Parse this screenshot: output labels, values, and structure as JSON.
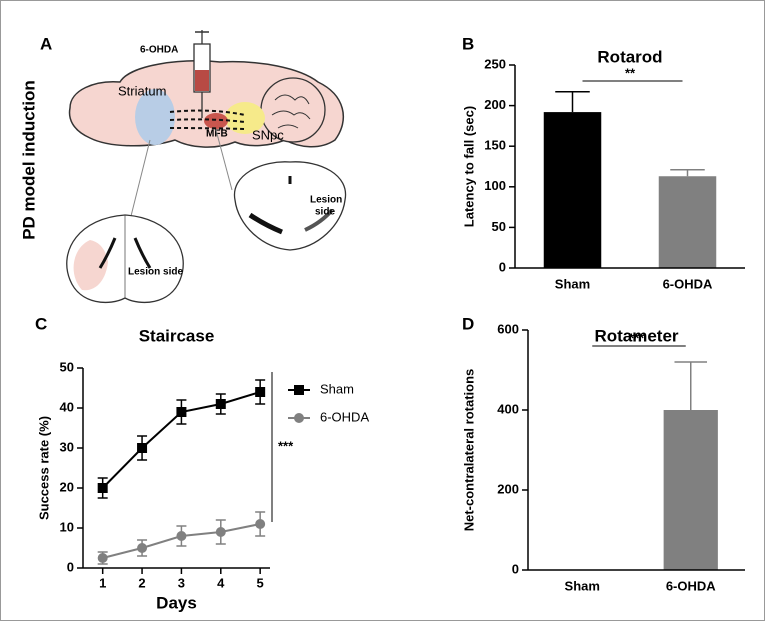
{
  "panel_a": {
    "panel": "A",
    "side_title": "PD model induction",
    "labels": {
      "toxin": "6-OHDA",
      "striatum": "Striatum",
      "mfb": "MFB",
      "snpc": "SNpc",
      "lesion_left": "Lesion side",
      "lesion_right_1": "Lesion",
      "lesion_right_2": "side"
    }
  },
  "chart_data": [
    {
      "type": "bar",
      "panel": "B",
      "title": "Rotarod",
      "ylabel": "Latency to fall (sec)",
      "categories": [
        "Sham",
        "6-OHDA"
      ],
      "values": [
        192,
        113
      ],
      "errors": [
        25,
        8
      ],
      "colors": [
        "#000000",
        "#808080"
      ],
      "ylim": [
        0,
        250
      ],
      "yticks": [
        0,
        50,
        100,
        150,
        200,
        250
      ],
      "significance": "**"
    },
    {
      "type": "line",
      "panel": "C",
      "title": "Staircase",
      "xlabel": "Days",
      "ylabel": "Success rate (%)",
      "x": [
        1,
        2,
        3,
        4,
        5
      ],
      "xlim": [
        0.5,
        5.25
      ],
      "xticks": [
        1,
        2,
        3,
        4,
        5
      ],
      "ylim": [
        0,
        50
      ],
      "yticks": [
        0,
        10,
        20,
        30,
        40,
        50
      ],
      "series": [
        {
          "name": "Sham",
          "color": "#000000",
          "marker": "square",
          "values": [
            20,
            30,
            39,
            41,
            44
          ],
          "errors": [
            2.5,
            3,
            3,
            2.5,
            3
          ]
        },
        {
          "name": "6-OHDA",
          "color": "#808080",
          "marker": "circle",
          "values": [
            2.5,
            5,
            8,
            9,
            11
          ],
          "errors": [
            1.5,
            2,
            2.5,
            3,
            3
          ]
        }
      ],
      "legend": "right",
      "significance": "***"
    },
    {
      "type": "bar",
      "panel": "D",
      "title": "Rotameter",
      "ylabel": "Net-contralateral rotations",
      "categories": [
        "Sham",
        "6-OHDA"
      ],
      "values": [
        0,
        400
      ],
      "errors": [
        0,
        120
      ],
      "colors": [
        "#000000",
        "#808080"
      ],
      "ylim": [
        0,
        600
      ],
      "yticks": [
        0,
        200,
        400,
        600
      ],
      "significance": "***"
    }
  ]
}
